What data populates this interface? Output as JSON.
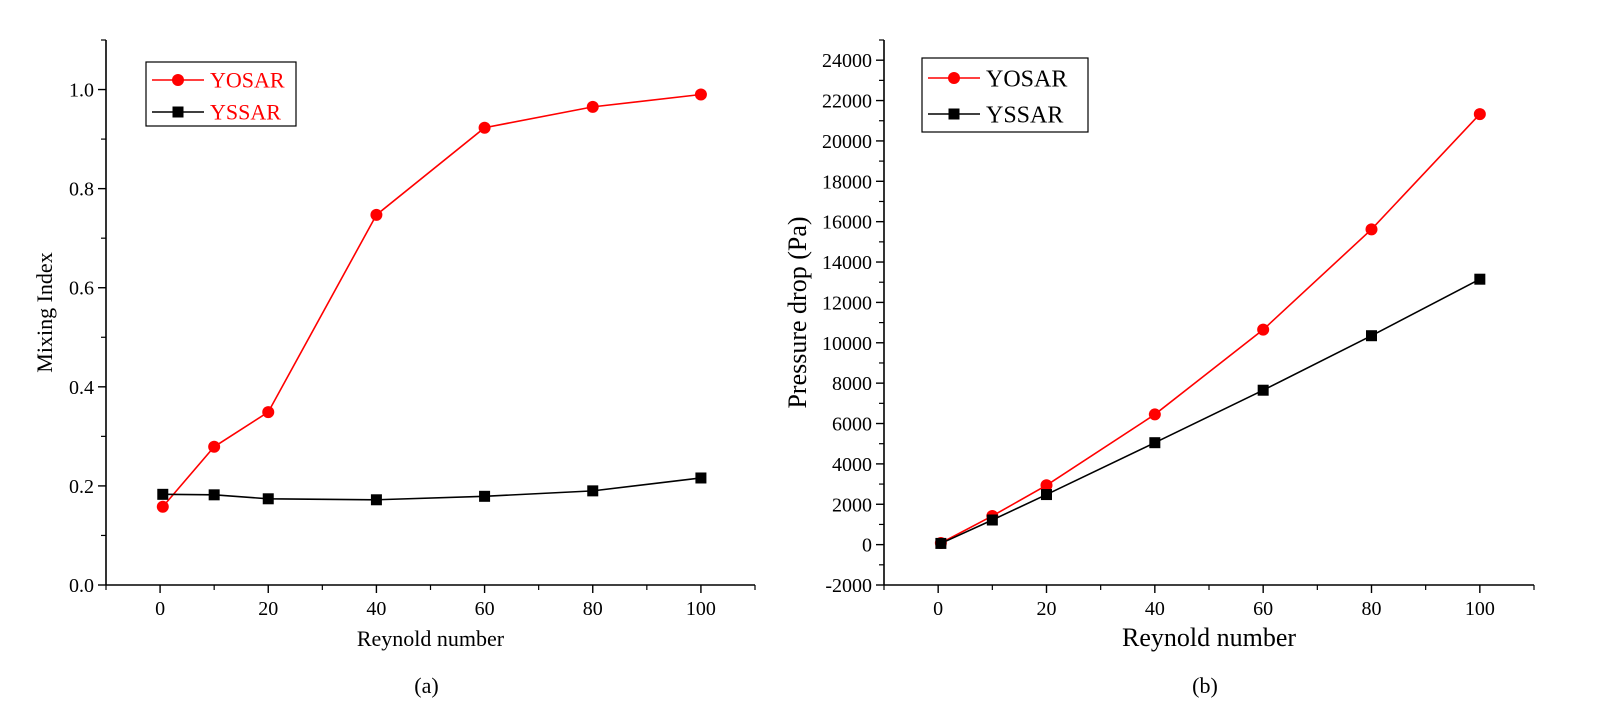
{
  "chart_data": [
    {
      "type": "line",
      "panel_label": "(a)",
      "xlabel": "Reynold number",
      "ylabel": "Mixing Index",
      "xlim": [
        -10,
        110
      ],
      "ylim": [
        0,
        1.1
      ],
      "xticks": [
        0,
        20,
        40,
        60,
        80,
        100
      ],
      "xtick_labels": [
        "0",
        "20",
        "40",
        "60",
        "80",
        "100"
      ],
      "yticks": [
        0,
        0.2,
        0.4,
        0.6,
        0.8,
        1.0
      ],
      "ytick_labels": [
        "0.0",
        "0.2",
        "0.4",
        "0.6",
        "0.8",
        "1.0"
      ],
      "grid": false,
      "legend_position": "top-left",
      "legend_text_color": "#ff0000",
      "series": [
        {
          "name": "YOSAR",
          "color": "#ff0000",
          "marker": "circle",
          "x": [
            0.5,
            10,
            20,
            40,
            60,
            80,
            100
          ],
          "y": [
            0.158,
            0.279,
            0.349,
            0.747,
            0.923,
            0.965,
            0.99
          ]
        },
        {
          "name": "YSSAR",
          "color": "#000000",
          "marker": "square",
          "x": [
            0.5,
            10,
            20,
            40,
            60,
            80,
            100
          ],
          "y": [
            0.183,
            0.182,
            0.174,
            0.172,
            0.179,
            0.19,
            0.216
          ]
        }
      ]
    },
    {
      "type": "line",
      "panel_label": "(b)",
      "xlabel": "Reynold number",
      "ylabel": "Pressure drop (Pa)",
      "xlim": [
        -10,
        110
      ],
      "ylim": [
        -2000,
        25000
      ],
      "xticks": [
        0,
        20,
        40,
        60,
        80,
        100
      ],
      "xtick_labels": [
        "0",
        "20",
        "40",
        "60",
        "80",
        "100"
      ],
      "yticks": [
        -2000,
        0,
        2000,
        4000,
        6000,
        8000,
        10000,
        12000,
        14000,
        16000,
        18000,
        20000,
        22000,
        24000
      ],
      "ytick_labels": [
        "-2000",
        "0",
        "2000",
        "4000",
        "6000",
        "8000",
        "10000",
        "12000",
        "14000",
        "16000",
        "18000",
        "20000",
        "22000",
        "24000"
      ],
      "grid": false,
      "legend_position": "top-left",
      "legend_text_color": "#000000",
      "series": [
        {
          "name": "YOSAR",
          "color": "#ff0000",
          "marker": "circle",
          "x": [
            0.5,
            10,
            20,
            40,
            60,
            80,
            100
          ],
          "y": [
            80,
            1420,
            2940,
            6450,
            10650,
            15620,
            21330
          ]
        },
        {
          "name": "YSSAR",
          "color": "#000000",
          "marker": "square",
          "x": [
            0.5,
            10,
            20,
            40,
            60,
            80,
            100
          ],
          "y": [
            60,
            1220,
            2480,
            5050,
            7650,
            10350,
            13150
          ]
        }
      ]
    }
  ]
}
